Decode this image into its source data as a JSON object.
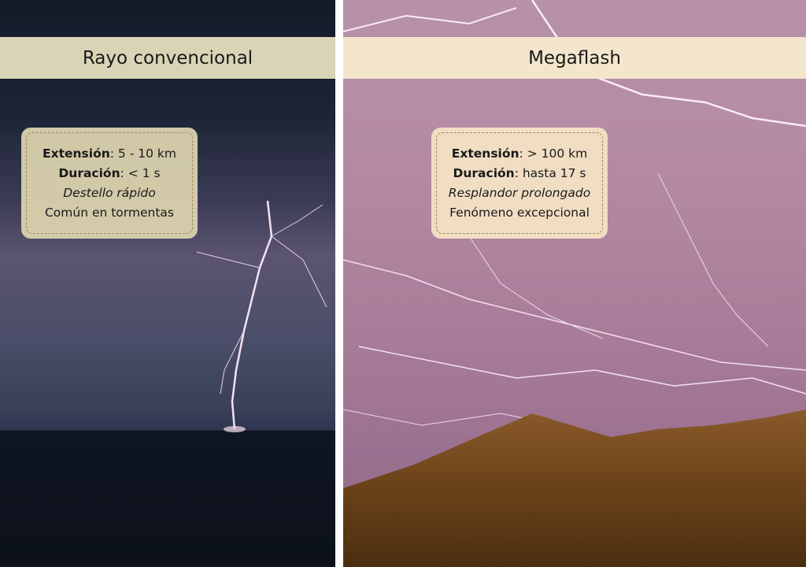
{
  "panels": [
    {
      "title": "Rayo convencional",
      "extension_label": "Extensión",
      "extension_value": ": 5 - 10 km",
      "duration_label": "Duración",
      "duration_value": ": < 1 s",
      "description": "Destello rápido",
      "note": "Común en tormentas"
    },
    {
      "title": "Megaflash",
      "extension_label": "Extensión",
      "extension_value": ": > 100 km",
      "duration_label": "Duración",
      "duration_value": ": hasta 17 s",
      "description": "Resplandor prolongado",
      "note": "Fenómeno excepcional"
    }
  ],
  "colors": {
    "left_title_bar": "#d9d4b6",
    "right_title_bar": "#f3e6cc",
    "divider": "#ffffff"
  }
}
